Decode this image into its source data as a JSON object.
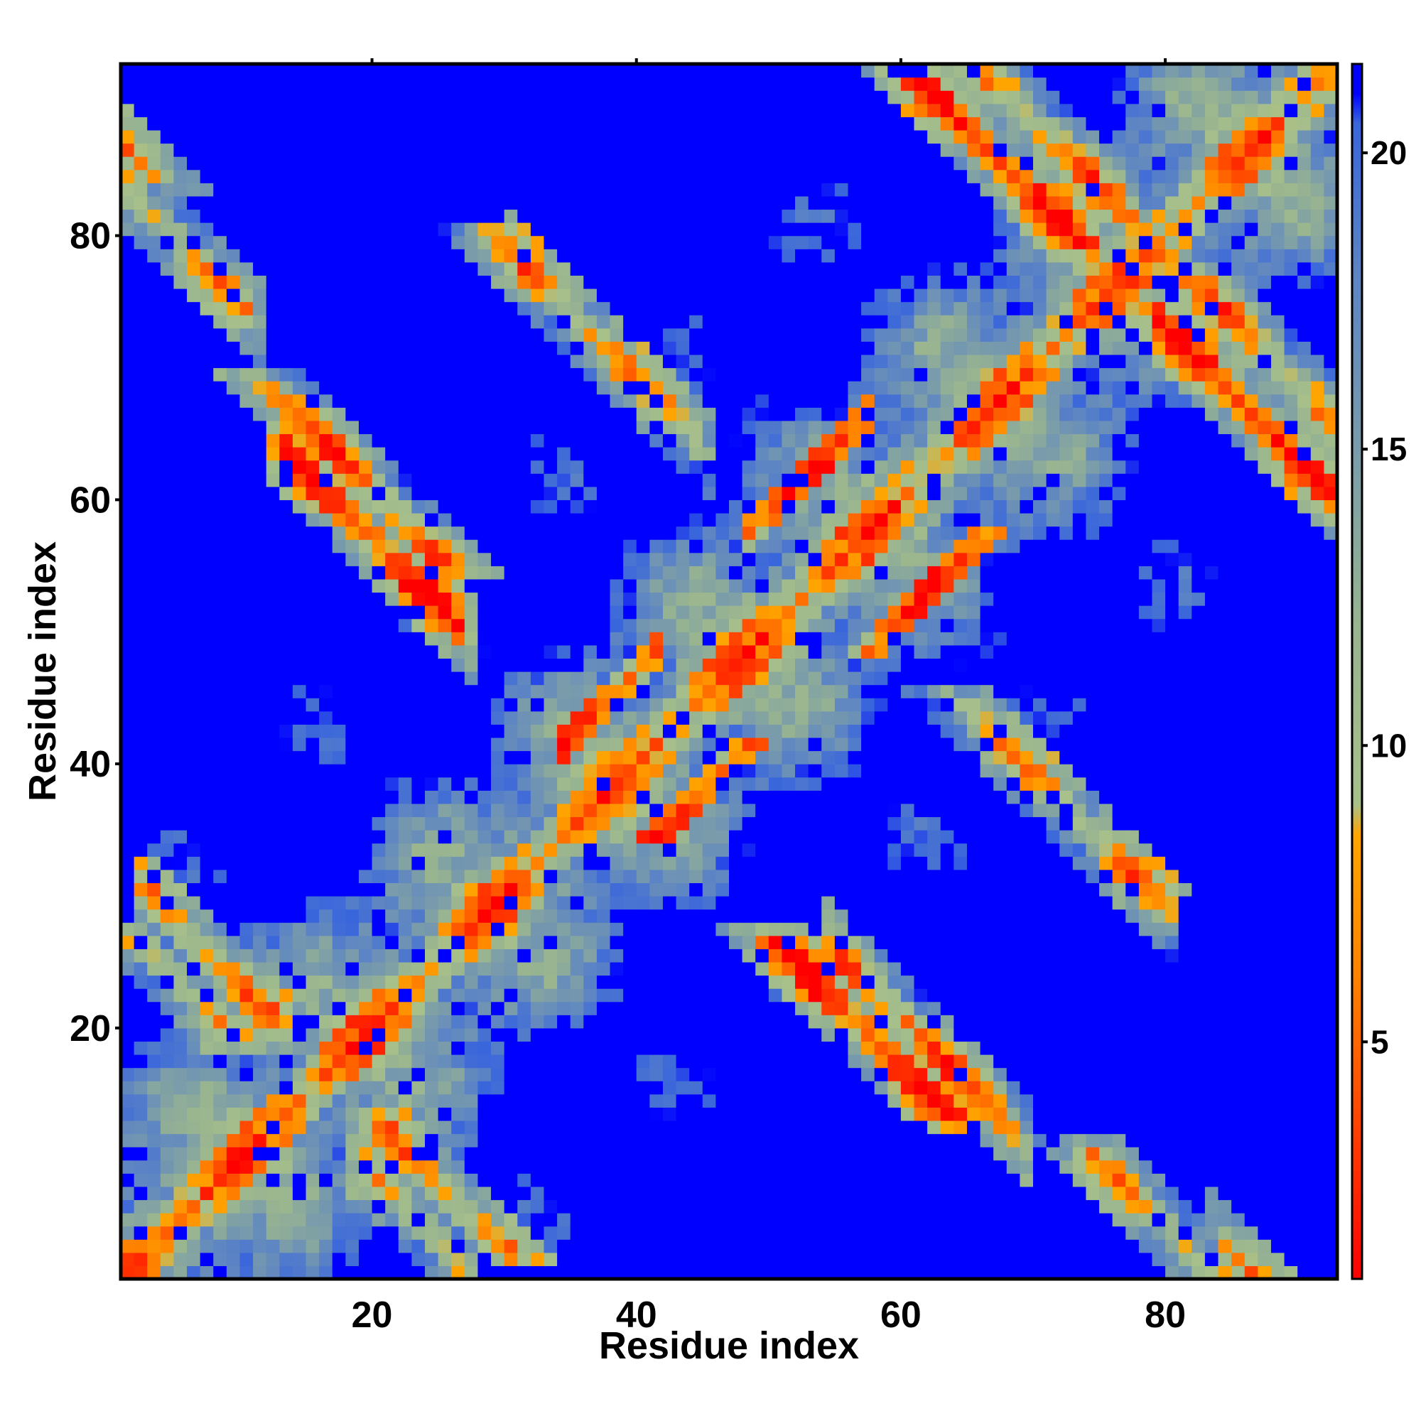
{
  "chart_data": {
    "type": "heatmap",
    "title": "",
    "xlabel": "Residue index",
    "ylabel": "Residue index",
    "xlim": [
      1,
      93
    ],
    "ylim": [
      1,
      93
    ],
    "n_residues": 92,
    "x_ticks": [
      20,
      40,
      60,
      80
    ],
    "y_ticks": [
      20,
      40,
      60,
      80
    ],
    "colorbar": {
      "ticks": [
        5,
        10,
        15,
        20
      ],
      "range": [
        1,
        21.5
      ],
      "stops": [
        {
          "value": 1,
          "color": "#ff0000"
        },
        {
          "value": 6,
          "color": "#ff8000"
        },
        {
          "value": 8.5,
          "color": "#ffa500"
        },
        {
          "value": 9,
          "color": "#a8c08a"
        },
        {
          "value": 12,
          "color": "#98b490"
        },
        {
          "value": 18,
          "color": "#5c84c4"
        },
        {
          "value": 20.5,
          "color": "#3a66dc"
        },
        {
          "value": 21,
          "color": "#0000ff"
        }
      ],
      "cutoff_value": 21,
      "cutoff_color": "#0000ff"
    },
    "pattern": {
      "description_free": true,
      "diagonal_distance": 1,
      "beta_strand_pairs": [
        {
          "i_start": 4,
          "j_start": 28,
          "length": 8,
          "orientation": "antiparallel"
        },
        {
          "i_start": 20,
          "j_start": 8,
          "length": 6,
          "orientation": "antiparallel"
        },
        {
          "i_start": 14,
          "j_start": 62,
          "length": 12,
          "orientation": "antiparallel"
        },
        {
          "i_start": 32,
          "j_start": 76,
          "length": 12,
          "orientation": "antiparallel"
        },
        {
          "i_start": 56,
          "j_start": 24,
          "length": 12,
          "orientation": "antiparallel"
        },
        {
          "i_start": 69,
          "j_start": 39,
          "length": 10,
          "orientation": "antiparallel"
        },
        {
          "i_start": 64,
          "j_start": 94,
          "length": 14,
          "orientation": "antiparallel"
        },
        {
          "i_start": 80,
          "j_start": 72,
          "length": 12,
          "orientation": "antiparallel"
        },
        {
          "i_start": 35,
          "j_start": 42,
          "length": 6,
          "orientation": "local"
        },
        {
          "i_start": 49,
          "j_start": 58,
          "length": 8,
          "orientation": "local"
        },
        {
          "i_start": 85,
          "j_start": 2,
          "length": 8,
          "orientation": "antiparallel"
        },
        {
          "i_start": 2,
          "j_start": 82,
          "length": 8,
          "orientation": "antiparallel"
        }
      ]
    }
  }
}
